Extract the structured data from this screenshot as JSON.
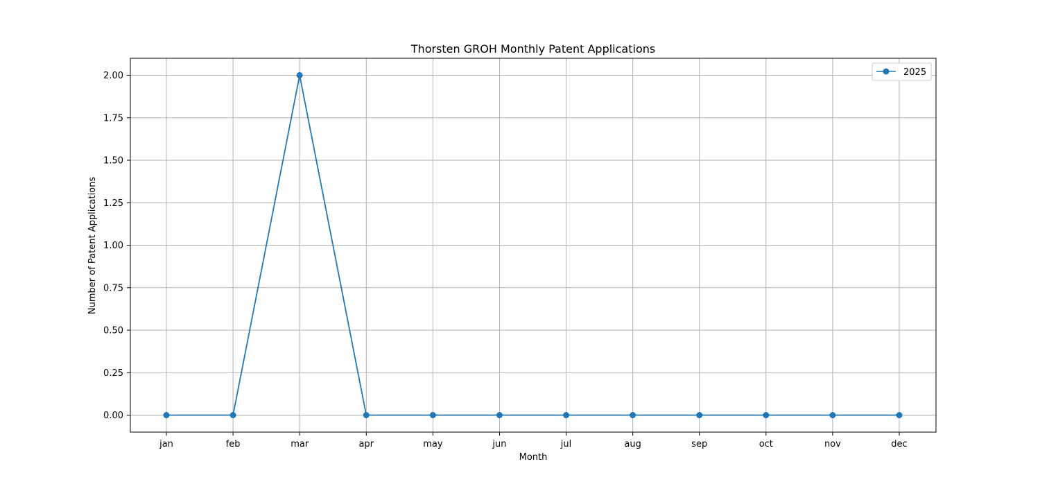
{
  "chart_data": {
    "type": "line",
    "title": "Thorsten GROH Monthly Patent Applications",
    "xlabel": "Month",
    "ylabel": "Number of Patent Applications",
    "categories": [
      "jan",
      "feb",
      "mar",
      "apr",
      "may",
      "jun",
      "jul",
      "aug",
      "sep",
      "oct",
      "nov",
      "dec"
    ],
    "series": [
      {
        "name": "2025",
        "values": [
          0,
          0,
          2,
          0,
          0,
          0,
          0,
          0,
          0,
          0,
          0,
          0
        ],
        "color": "#1f77b4",
        "marker": "circle"
      }
    ],
    "ylim": [
      -0.1,
      2.1
    ],
    "yticks": [
      "0.00",
      "0.25",
      "0.50",
      "0.75",
      "1.00",
      "1.25",
      "1.50",
      "1.75",
      "2.00"
    ],
    "grid": true,
    "legend_position": "top-right"
  }
}
